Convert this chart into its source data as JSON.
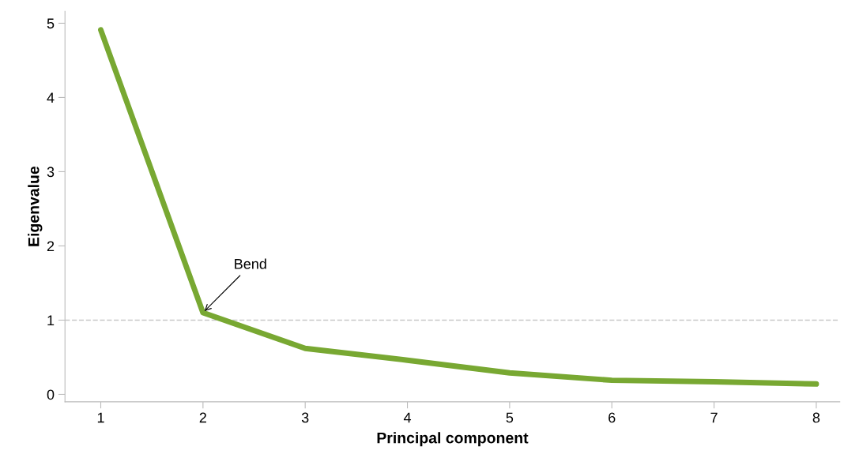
{
  "chart_data": {
    "type": "line",
    "xlabel": "Principal component",
    "ylabel": "Eigenvalue",
    "x": [
      1,
      2,
      3,
      4,
      5,
      6,
      7,
      8
    ],
    "series": [
      {
        "color": "#78a832",
        "values": [
          4.91,
          1.1,
          0.62,
          0.46,
          0.29,
          0.19,
          0.17,
          0.14
        ]
      }
    ],
    "xlim": [
      0.65,
      8.23
    ],
    "ylim": [
      -0.1,
      5.16
    ],
    "xticks": [
      1,
      2,
      3,
      4,
      5,
      6,
      7,
      8
    ],
    "yticks": [
      0,
      1,
      2,
      3,
      4,
      5
    ],
    "ref_lines": [
      {
        "axis": "y",
        "value": 1,
        "color": "#c8c8c8",
        "line_style": "dashed"
      }
    ],
    "annotations": [
      {
        "text": "Bend",
        "x": 2,
        "y": 1.1
      }
    ],
    "grid": false,
    "legend": false,
    "marker": "none",
    "line_style": "solid"
  }
}
